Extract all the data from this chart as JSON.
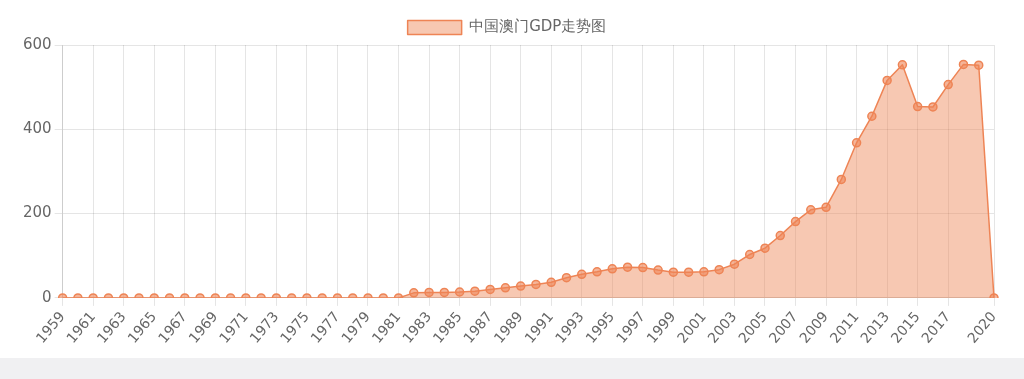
{
  "chart_data": {
    "type": "area",
    "legend": "top",
    "grid": true,
    "marker": "circle",
    "line_style": "solid",
    "categories": [
      "1959",
      null,
      "1961",
      null,
      "1963",
      null,
      "1965",
      null,
      "1967",
      null,
      "1969",
      null,
      "1971",
      null,
      "1973",
      null,
      "1975",
      null,
      "1977",
      null,
      "1979",
      null,
      "1981",
      null,
      "1983",
      null,
      "1985",
      null,
      "1987",
      null,
      "1989",
      null,
      "1991",
      null,
      "1993",
      null,
      "1995",
      null,
      "1997",
      null,
      "1999",
      null,
      "2001",
      null,
      "2003",
      null,
      "2005",
      null,
      "2007",
      null,
      "2009",
      null,
      "2011",
      null,
      "2013",
      null,
      "2015",
      null,
      "2017",
      null,
      null,
      "2020"
    ],
    "ylim": [
      0,
      600
    ],
    "yticks": [
      0,
      200,
      400,
      600
    ],
    "series": [
      {
        "name": "中国澳门GDP走势图",
        "color": "#ee8455",
        "values": [
          0,
          0,
          0,
          0,
          0,
          0,
          0,
          0,
          0,
          0,
          0,
          0,
          0,
          0,
          0,
          0,
          0,
          0,
          0,
          0,
          0,
          0,
          0,
          12,
          13,
          13,
          14,
          16,
          20,
          24,
          28,
          32,
          37,
          48,
          56,
          62,
          69,
          73,
          72,
          66,
          61,
          61,
          62,
          67,
          80,
          103,
          118,
          148,
          181,
          209,
          215,
          281,
          368,
          431,
          516,
          553,
          454,
          453,
          506,
          554,
          552,
          0
        ]
      }
    ]
  }
}
